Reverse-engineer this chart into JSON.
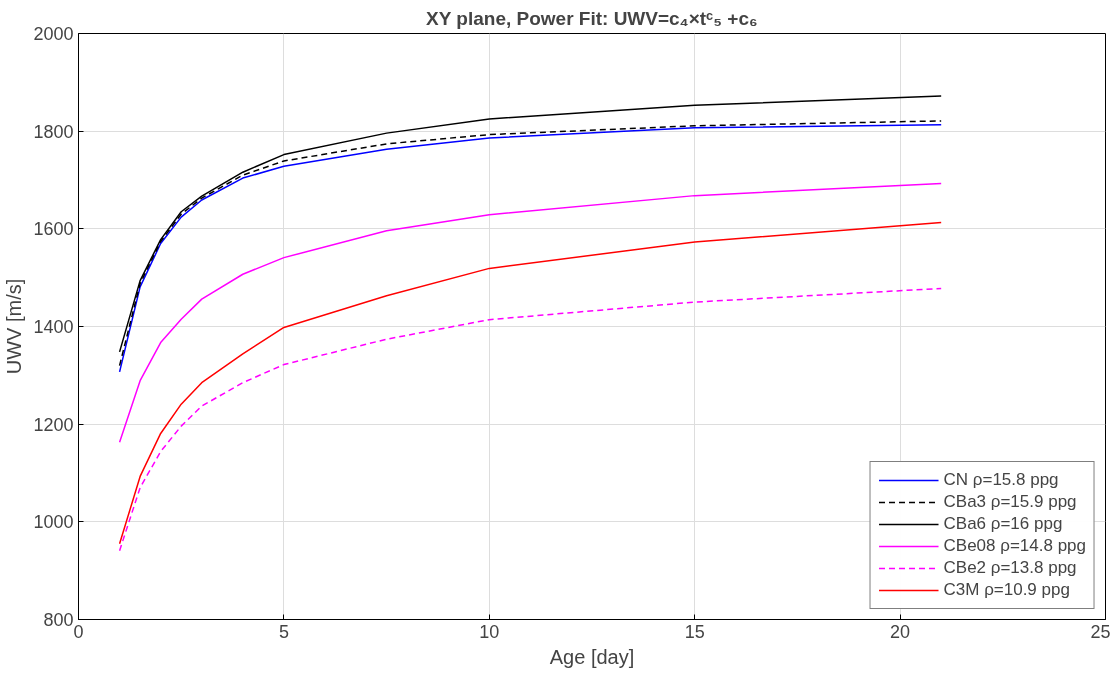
{
  "chart_data": {
    "type": "line",
    "title": "XY plane, Power Fit: UWV=c₄×tᶜ₅ +c₆",
    "xlabel": "Age [day]",
    "ylabel": "UWV [m/s]",
    "x": [
      1,
      1.5,
      2,
      2.5,
      3,
      4,
      5,
      7.5,
      10,
      15,
      21
    ],
    "series": [
      {
        "name": "CN ρ=15.8 ppg",
        "color": "#0000ff",
        "line_style": "solid",
        "values": [
          1307,
          1481,
          1570,
          1624,
          1659,
          1704,
          1728,
          1763,
          1786,
          1807,
          1813
        ]
      },
      {
        "name": "CBa3 ρ=15.9 ppg",
        "color": "#000000",
        "line_style": "dashed",
        "values": [
          1320,
          1488,
          1574,
          1630,
          1663,
          1710,
          1739,
          1774,
          1793,
          1811,
          1821
        ]
      },
      {
        "name": "CBa6 ρ=16 ppg",
        "color": "#000000",
        "line_style": "solid",
        "values": [
          1348,
          1494,
          1578,
          1635,
          1667,
          1716,
          1752,
          1796,
          1825,
          1853,
          1872
        ]
      },
      {
        "name": "CBe08 ρ=14.8 ppg",
        "color": "#ff00ff",
        "line_style": "solid",
        "values": [
          1163,
          1289,
          1367,
          1415,
          1456,
          1507,
          1541,
          1596,
          1629,
          1668,
          1693
        ]
      },
      {
        "name": "CBe2 ρ=13.8 ppg",
        "color": "#ff00ff",
        "line_style": "dashed",
        "values": [
          941,
          1070,
          1144,
          1196,
          1237,
          1285,
          1322,
          1374,
          1414,
          1450,
          1478
        ]
      },
      {
        "name": "C3M ρ=10.9 ppg",
        "color": "#ff0000",
        "line_style": "solid",
        "values": [
          955,
          1093,
          1181,
          1241,
          1285,
          1344,
          1398,
          1463,
          1519,
          1573,
          1613
        ]
      }
    ],
    "xlim": [
      0,
      25
    ],
    "ylim": [
      800,
      2000
    ],
    "xticks": [
      0,
      5,
      10,
      15,
      20,
      25
    ],
    "yticks": [
      800,
      1000,
      1200,
      1400,
      1600,
      1800,
      2000
    ],
    "grid": true,
    "legend": "bottom right",
    "marker": "none"
  }
}
